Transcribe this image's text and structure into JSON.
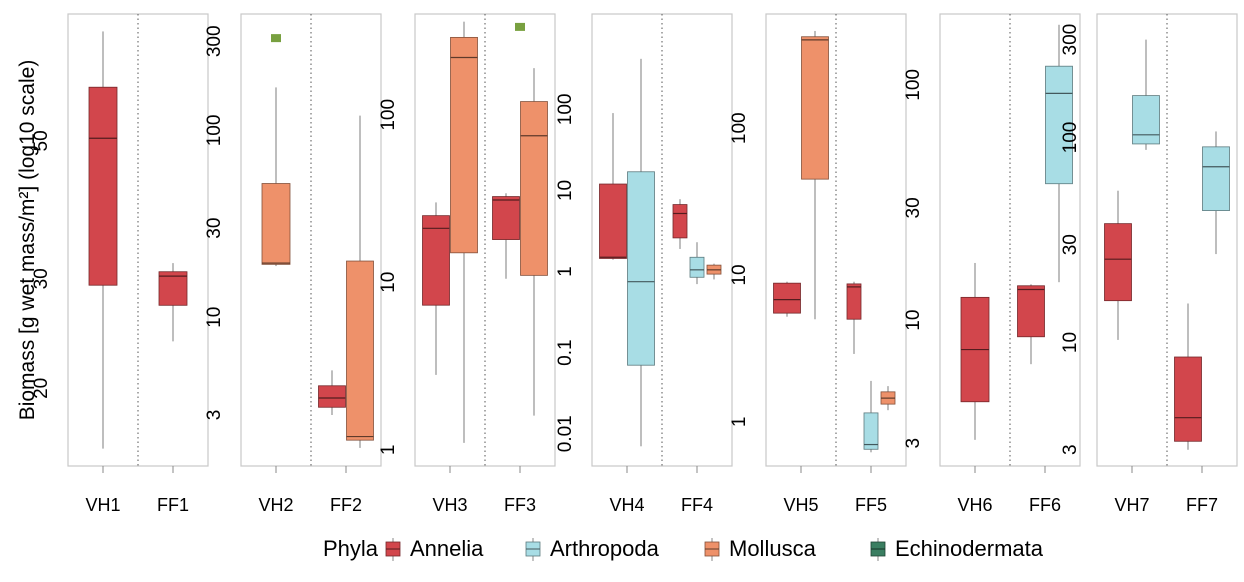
{
  "chart_data": {
    "type": "box",
    "ylabel": "Biomass [g wet mass/m²] (log10 scale)",
    "y_scale": "log10",
    "legend": {
      "title": "Phyla",
      "position": "bottom",
      "items": [
        {
          "name": "Annelia",
          "color": "#D2464C"
        },
        {
          "name": "Arthropoda",
          "color": "#A8DDE5"
        },
        {
          "name": "Mollusca",
          "color": "#EE916A"
        },
        {
          "name": "Echinodermata",
          "color": "#3A7E61"
        }
      ]
    },
    "panels": [
      {
        "categories": [
          "VH1",
          "FF1"
        ],
        "ylim": [
          15,
          80
        ],
        "yticks": [
          {
            "value": 20,
            "label": "20"
          },
          {
            "value": 30,
            "label": "30"
          },
          {
            "value": 50,
            "label": "50"
          }
        ],
        "boxes": [
          {
            "category": "VH1",
            "phylum": "Annelia",
            "min": 16,
            "q1": 29.3,
            "median": 50.5,
            "q3": 61,
            "max": 75
          },
          {
            "category": "FF1",
            "phylum": "Annelia",
            "min": 23.8,
            "q1": 27.2,
            "median": 30.3,
            "q3": 30.8,
            "max": 31.8
          }
        ],
        "outliers": []
      },
      {
        "categories": [
          "VH2",
          "FF2"
        ],
        "ylim": [
          1.6,
          420
        ],
        "yticks": [
          {
            "value": 3,
            "label": "3"
          },
          {
            "value": 10,
            "label": "10"
          },
          {
            "value": 30,
            "label": "30"
          },
          {
            "value": 100,
            "label": "100"
          },
          {
            "value": 300,
            "label": "300"
          }
        ],
        "boxes": [
          {
            "category": "VH2",
            "phylum": "Mollusca",
            "min": 18.8,
            "q1": 19.2,
            "median": 19.5,
            "q3": 52,
            "max": 170
          },
          {
            "category": "FF2",
            "phylum": "Annelia",
            "min": 3.0,
            "q1": 3.3,
            "median": 3.7,
            "q3": 4.3,
            "max": 5.2
          },
          {
            "category": "FF2",
            "phylum": "Mollusca",
            "min": 2.0,
            "q1": 2.2,
            "median": 2.3,
            "q3": 20,
            "max": 120
          }
        ],
        "outliers": [
          {
            "category": "VH2",
            "phylum": "Echinodermata",
            "value": 312
          }
        ]
      },
      {
        "categories": [
          "VH3",
          "FF3"
        ],
        "ylim": [
          0.8,
          400
        ],
        "yticks": [
          {
            "value": 1,
            "label": "1"
          },
          {
            "value": 10,
            "label": "10"
          },
          {
            "value": 100,
            "label": "100"
          }
        ],
        "boxes": [
          {
            "category": "VH3",
            "phylum": "Annelia",
            "min": 2.8,
            "q1": 7.3,
            "median": 21,
            "q3": 25,
            "max": 30
          },
          {
            "category": "VH3",
            "phylum": "Mollusca",
            "min": 1.1,
            "q1": 15,
            "median": 220,
            "q3": 290,
            "max": 360
          },
          {
            "category": "FF3",
            "phylum": "Annelia",
            "min": 10.5,
            "q1": 18,
            "median": 31,
            "q3": 32.5,
            "max": 34
          },
          {
            "category": "FF3",
            "phylum": "Mollusca",
            "min": 1.6,
            "q1": 11,
            "median": 75,
            "q3": 120,
            "max": 190
          }
        ],
        "outliers": [
          {
            "category": "FF3",
            "phylum": "Echinodermata",
            "value": 335
          }
        ]
      },
      {
        "categories": [
          "VH4",
          "FF4"
        ],
        "ylim": [
          0.004,
          1500
        ],
        "yticks": [
          {
            "value": 0.01,
            "label": "0.01"
          },
          {
            "value": 0.1,
            "label": "0.1"
          },
          {
            "value": 1,
            "label": "1"
          },
          {
            "value": 10,
            "label": "10"
          },
          {
            "value": 100,
            "label": "100"
          }
        ],
        "boxes": [
          {
            "category": "VH4",
            "phylum": "Annelia",
            "min": 1.4,
            "q1": 1.45,
            "median": 1.5,
            "q3": 12,
            "max": 90
          },
          {
            "category": "VH4",
            "phylum": "Arthropoda",
            "min": 0.007,
            "q1": 0.07,
            "median": 0.75,
            "q3": 17,
            "max": 420
          },
          {
            "category": "FF4",
            "phylum": "Annelia",
            "min": 1.9,
            "q1": 2.6,
            "median": 5.2,
            "q3": 6.7,
            "max": 7.8
          },
          {
            "category": "FF4",
            "phylum": "Arthropoda",
            "min": 0.7,
            "q1": 0.85,
            "median": 1.05,
            "q3": 1.5,
            "max": 2.3
          },
          {
            "category": "FF4",
            "phylum": "Mollusca",
            "min": 0.8,
            "q1": 0.93,
            "median": 1.05,
            "q3": 1.2,
            "max": 1.25
          }
        ],
        "outliers": []
      },
      {
        "categories": [
          "VH5",
          "FF5"
        ],
        "ylim": [
          0.5,
          600
        ],
        "yticks": [
          {
            "value": 1,
            "label": "1"
          },
          {
            "value": 10,
            "label": "10"
          },
          {
            "value": 100,
            "label": "100"
          }
        ],
        "boxes": [
          {
            "category": "VH5",
            "phylum": "Annelia",
            "min": 5.2,
            "q1": 5.5,
            "median": 6.8,
            "q3": 8.8,
            "max": 9.0
          },
          {
            "category": "VH5",
            "phylum": "Mollusca",
            "min": 5.0,
            "q1": 45,
            "median": 400,
            "q3": 420,
            "max": 460
          },
          {
            "category": "FF5",
            "phylum": "Annelia",
            "min": 2.9,
            "q1": 5.0,
            "median": 8.3,
            "q3": 8.7,
            "max": 9.0
          },
          {
            "category": "FF5",
            "phylum": "Arthropoda",
            "min": 0.62,
            "q1": 0.65,
            "median": 0.7,
            "q3": 1.15,
            "max": 1.9
          },
          {
            "category": "FF5",
            "phylum": "Mollusca",
            "min": 1.2,
            "q1": 1.32,
            "median": 1.45,
            "q3": 1.6,
            "max": 1.75
          }
        ],
        "outliers": []
      },
      {
        "categories": [
          "VH6",
          "FF6"
        ],
        "ylim": [
          2.4,
          200
        ],
        "yticks": [
          {
            "value": 3,
            "label": "3"
          },
          {
            "value": 10,
            "label": "10"
          },
          {
            "value": 30,
            "label": "30"
          },
          {
            "value": 100,
            "label": "100"
          }
        ],
        "boxes": [
          {
            "category": "VH6",
            "phylum": "Annelia",
            "min": 3.1,
            "q1": 4.5,
            "median": 7.5,
            "q3": 12.5,
            "max": 17.5
          },
          {
            "category": "FF6",
            "phylum": "Annelia",
            "min": 6.5,
            "q1": 8.5,
            "median": 13.5,
            "q3": 14,
            "max": 14.2
          },
          {
            "category": "FF6",
            "phylum": "Arthropoda",
            "min": 14.5,
            "q1": 38,
            "median": 92,
            "q3": 120,
            "max": 180
          }
        ],
        "outliers": []
      },
      {
        "categories": [
          "VH7",
          "FF7"
        ],
        "ylim": [
          2.5,
          400
        ],
        "yticks": [
          {
            "value": 3,
            "label": "3"
          },
          {
            "value": 10,
            "label": "10"
          },
          {
            "value": 30,
            "label": "30"
          },
          {
            "value": 100,
            "label": "100"
          },
          {
            "value": 300,
            "label": "300"
          }
        ],
        "boxes": [
          {
            "category": "VH7",
            "phylum": "Annelia",
            "min": 10.3,
            "q1": 16,
            "median": 25.5,
            "q3": 38,
            "max": 55
          },
          {
            "category": "VH7",
            "phylum": "Arthropoda",
            "min": 87,
            "q1": 93,
            "median": 103,
            "q3": 160,
            "max": 300
          },
          {
            "category": "FF7",
            "phylum": "Annelia",
            "min": 3.0,
            "q1": 3.3,
            "median": 4.3,
            "q3": 8.5,
            "max": 15.5
          },
          {
            "category": "FF7",
            "phylum": "Arthropoda",
            "min": 27,
            "q1": 44,
            "median": 72,
            "q3": 90,
            "max": 107
          }
        ],
        "outliers": []
      }
    ]
  }
}
